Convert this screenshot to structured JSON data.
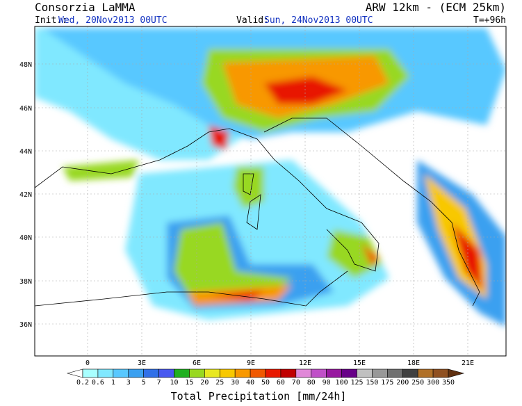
{
  "header": {
    "left_title": "Consorzia LaMMA",
    "init_label": "Init.:",
    "init_time": "Wed, 20Nov2013 00UTC",
    "right_title": "ARW 12km  -  (ECM 25km)",
    "valid_label": "Valid:",
    "valid_time": "Sun, 24Nov2013 00UTC",
    "lead_time": "T=+96h"
  },
  "map": {
    "lat_labels": [
      "48N",
      "46N",
      "44N",
      "42N",
      "40N",
      "38N",
      "36N"
    ],
    "lon_labels": [
      "0",
      "3E",
      "6E",
      "9E",
      "12E",
      "15E",
      "18E",
      "21E"
    ]
  },
  "colorbar": {
    "title": "Total Precipitation [mm/24h]",
    "labels": [
      "0.2",
      "0.6",
      "1",
      "3",
      "5",
      "7",
      "10",
      "15",
      "20",
      "25",
      "30",
      "40",
      "50",
      "60",
      "70",
      "80",
      "90",
      "100",
      "125",
      "150",
      "175",
      "200",
      "250",
      "300",
      "350"
    ],
    "colors": [
      "#ffffff",
      "#a8ffff",
      "#80e8ff",
      "#58c8ff",
      "#3aa0f0",
      "#3070e8",
      "#4858f0",
      "#20b020",
      "#98d820",
      "#e8e820",
      "#f8c800",
      "#f89800",
      "#f05800",
      "#e81800",
      "#c00000",
      "#e088d8",
      "#c050c8",
      "#9818a0",
      "#680088",
      "#c0c0c0",
      "#989898",
      "#707070",
      "#404040",
      "#b07028",
      "#905020",
      "#603010"
    ]
  }
}
